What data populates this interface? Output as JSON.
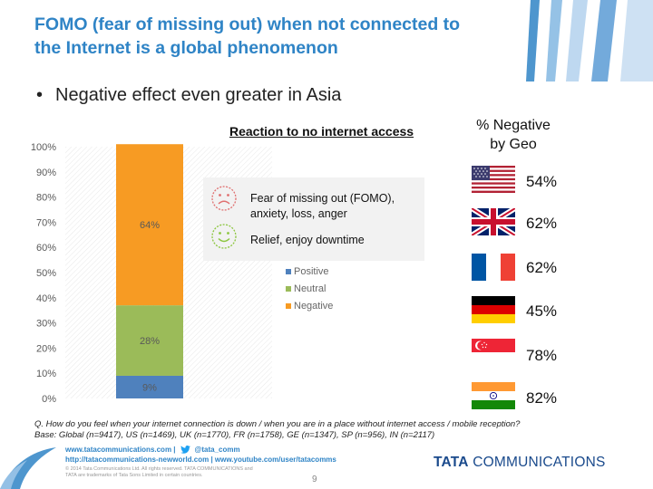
{
  "slide": {
    "title_line1": "FOMO (fear of missing out) when not connected to",
    "title_line2": "the Internet is a global phenomenon",
    "bullet_mark": "•",
    "bullet": "Negative effect even greater in Asia"
  },
  "callout": {
    "negative_text_line1": "Fear of missing out (FOMO),",
    "negative_text_line2": "anxiety, loss, anger",
    "positive_text": "Relief, enjoy downtime",
    "negative_icon": "sad-face-icon",
    "positive_icon": "smile-face-icon"
  },
  "geo": {
    "title_line1": "% Negative",
    "title_line2": "by Geo",
    "items": [
      {
        "flag": "us-flag-icon",
        "value": "54%"
      },
      {
        "flag": "uk-flag-icon",
        "value": "62%"
      },
      {
        "flag": "france-flag-icon",
        "value": "62%"
      },
      {
        "flag": "germany-flag-icon",
        "value": "45%"
      },
      {
        "flag": "singapore-flag-icon",
        "value": "78%"
      },
      {
        "flag": "india-flag-icon",
        "value": "82%"
      }
    ]
  },
  "chart_data": {
    "type": "bar",
    "stacked": true,
    "title": "Reaction to no internet access",
    "categories": [
      ""
    ],
    "series": [
      {
        "name": "Positive",
        "values": [
          9
        ],
        "label": "9%",
        "color": "#4f81bd"
      },
      {
        "name": "Neutral",
        "values": [
          28
        ],
        "label": "28%",
        "color": "#9bbb59"
      },
      {
        "name": "Negative",
        "values": [
          64
        ],
        "label": "64%",
        "color": "#f79b23"
      }
    ],
    "ylim": [
      0,
      100
    ],
    "yticks": [
      "0%",
      "10%",
      "20%",
      "30%",
      "40%",
      "50%",
      "60%",
      "70%",
      "80%",
      "90%",
      "100%"
    ],
    "legend_position": "right",
    "grid": false
  },
  "footnote": {
    "line1": "Q. How do you feel when your internet connection is down / when you are in a place without internet access / mobile reception?",
    "line2": "Base: Global (n=9417), US (n=1469), UK (n=1770), FR (n=1758), GE (n=1347), SP (n=956), IN (n=2117)"
  },
  "footer": {
    "link1": "www.tatacommunications.com |",
    "twitter": "@tata_comm",
    "twitter_icon": "twitter-bird-icon",
    "link2": "http://tatacommunications-newworld.com | www.youtube.com/user/tatacomms",
    "copyright_line1": "© 2014 Tata Communications Ltd. All rights reserved. TATA COMMUNICATIONS and",
    "copyright_line2": "TATA are trademarks of Tata Sons Limited in certain countries.",
    "page_number": "9",
    "brand_bold": "TATA",
    "brand_rest": " COMMUNICATIONS",
    "colors": {
      "blue": "#2f84c6",
      "navy": "#1a4a8c"
    }
  }
}
